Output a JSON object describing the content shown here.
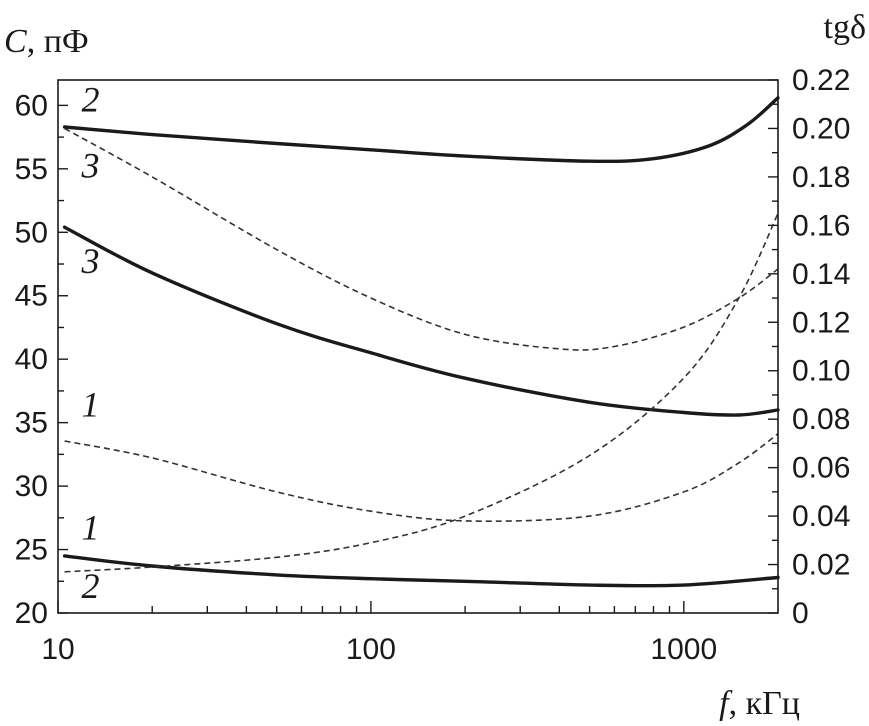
{
  "chart_data": {
    "type": "line",
    "x_scale": "log",
    "xlim": [
      10,
      2000
    ],
    "ylim_left": [
      20,
      62
    ],
    "ylim_right": [
      0,
      0.22
    ],
    "x_ticks": [
      "10",
      "100",
      "1000"
    ],
    "x_tick_values": [
      10,
      100,
      1000
    ],
    "y_left_ticks": [
      "20",
      "25",
      "30",
      "35",
      "40",
      "45",
      "50",
      "55",
      "60"
    ],
    "y_left_tick_values": [
      20,
      25,
      30,
      35,
      40,
      45,
      50,
      55,
      60
    ],
    "y_right_ticks": [
      "0",
      "0.02",
      "0.04",
      "0.06",
      "0.08",
      "0.10",
      "0.12",
      "0.14",
      "0.16",
      "0.18",
      "0.20",
      "0.22"
    ],
    "y_right_tick_values": [
      0,
      0.02,
      0.04,
      0.06,
      0.08,
      0.1,
      0.12,
      0.14,
      0.16,
      0.18,
      0.2,
      0.22
    ],
    "y_left_label_italic": "C",
    "y_left_label_rest": ", пФ",
    "y_right_label": "tgδ",
    "x_label_italic": "f",
    "x_label_rest": ", кГц",
    "grid": false,
    "series": [
      {
        "label": "1",
        "axis": "left",
        "style": "solid",
        "x": [
          10.5,
          20,
          50,
          100,
          200,
          500,
          1000,
          2000
        ],
        "y": [
          24.5,
          23.7,
          23.0,
          22.7,
          22.5,
          22.2,
          22.2,
          22.8
        ]
      },
      {
        "label": "2",
        "axis": "left",
        "style": "solid",
        "x": [
          10.5,
          20,
          50,
          100,
          200,
          500,
          800,
          1200,
          1600,
          2000
        ],
        "y": [
          58.3,
          57.7,
          57.0,
          56.5,
          56.0,
          55.6,
          55.8,
          56.8,
          58.5,
          60.6
        ]
      },
      {
        "label": "3",
        "axis": "left",
        "style": "solid",
        "x": [
          10.5,
          20,
          50,
          100,
          200,
          500,
          1000,
          1500,
          2000
        ],
        "y": [
          50.4,
          46.8,
          42.8,
          40.5,
          38.5,
          36.6,
          35.8,
          35.6,
          36.0
        ]
      },
      {
        "label": "1",
        "axis": "right",
        "style": "dashed",
        "x": [
          10.5,
          20,
          50,
          100,
          200,
          500,
          1000,
          1500,
          2000
        ],
        "y": [
          0.071,
          0.064,
          0.05,
          0.042,
          0.038,
          0.04,
          0.05,
          0.062,
          0.074
        ]
      },
      {
        "label": "2",
        "axis": "right",
        "style": "dashed",
        "x": [
          10.5,
          20,
          50,
          100,
          200,
          500,
          1000,
          1500,
          2000
        ],
        "y": [
          0.017,
          0.019,
          0.023,
          0.029,
          0.04,
          0.065,
          0.097,
          0.13,
          0.165
        ]
      },
      {
        "label": "3",
        "axis": "right",
        "style": "dashed",
        "x": [
          10.5,
          20,
          50,
          100,
          200,
          400,
          600,
          1000,
          1500,
          2000
        ],
        "y": [
          0.2,
          0.18,
          0.15,
          0.13,
          0.115,
          0.109,
          0.11,
          0.118,
          0.13,
          0.142
        ]
      }
    ],
    "curve_labels": [
      {
        "text": "2",
        "x": 12.7,
        "y": 59.5,
        "axis": "left"
      },
      {
        "text": "3",
        "x": 12.7,
        "y": 54.3,
        "axis": "left"
      },
      {
        "text": "3",
        "x": 12.7,
        "y": 46.8,
        "axis": "left"
      },
      {
        "text": "1",
        "x": 12.7,
        "y": 35.5,
        "axis": "left"
      },
      {
        "text": "1",
        "x": 12.7,
        "y": 25.8,
        "axis": "left"
      },
      {
        "text": "2",
        "x": 12.7,
        "y": 21.2,
        "axis": "left"
      }
    ]
  }
}
